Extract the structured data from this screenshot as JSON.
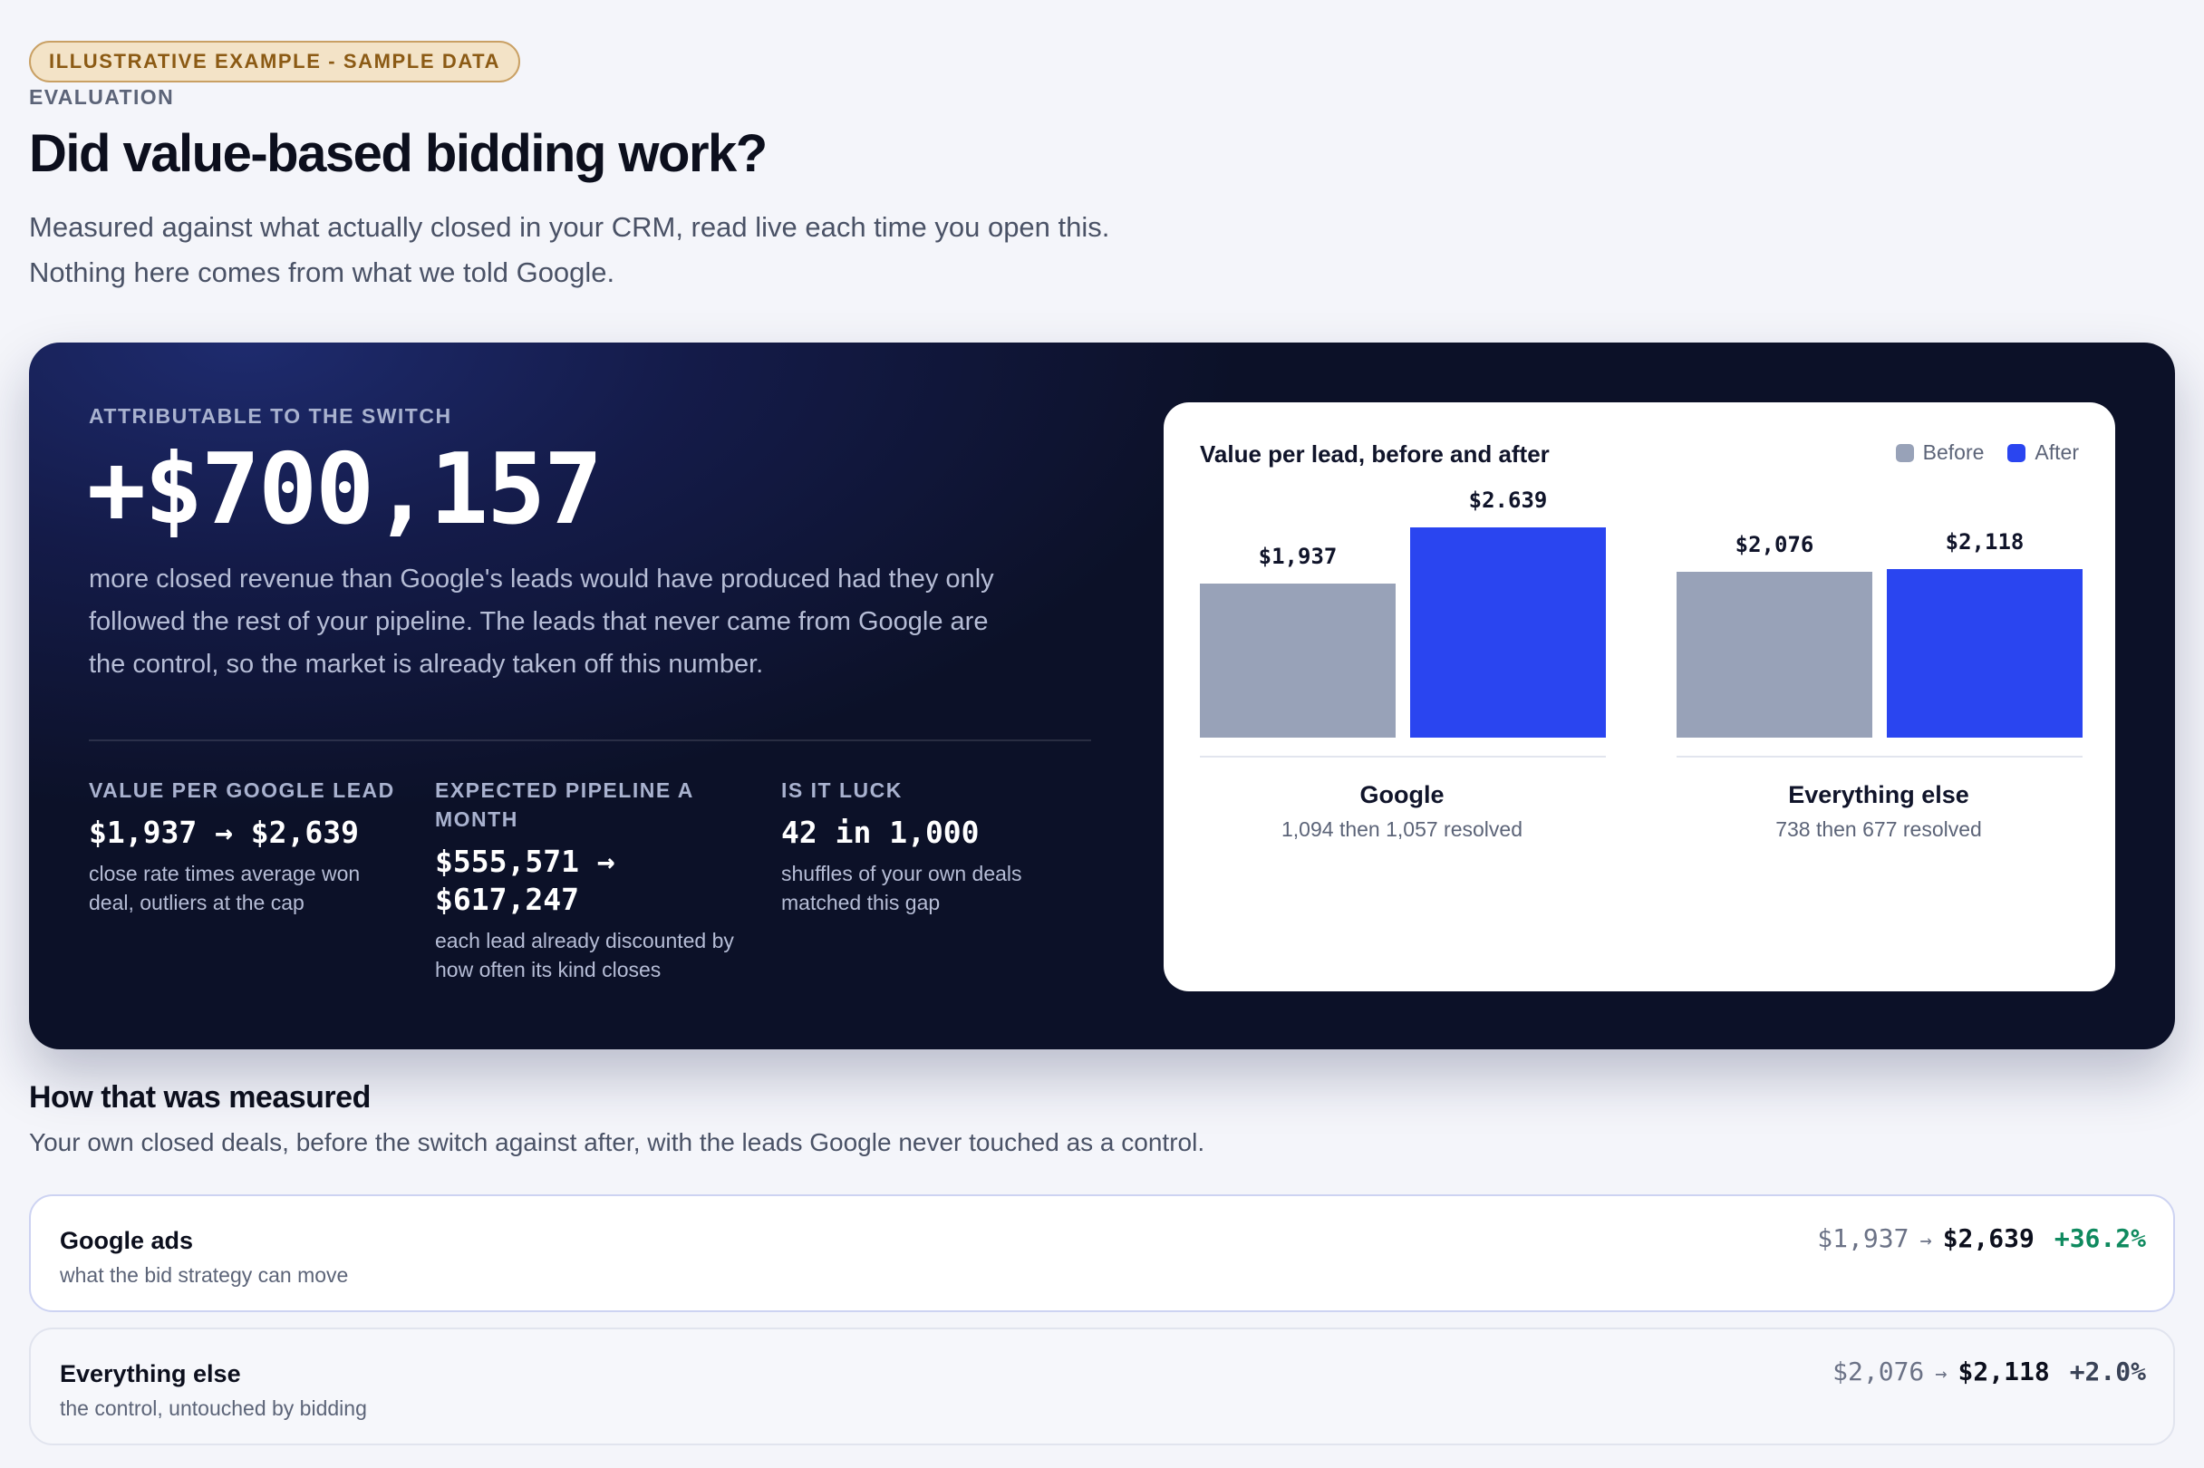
{
  "badge": "ILLUSTRATIVE EXAMPLE - SAMPLE DATA",
  "eyebrow": "EVALUATION",
  "title": "Did value-based bidding work?",
  "subtitle_lines": [
    "Measured against what actually closed in your CRM, read live each time you open this.",
    "Nothing here comes from what we told Google."
  ],
  "hero": {
    "eyebrow": "ATTRIBUTABLE TO THE SWITCH",
    "amount": "+$700,157",
    "description": "more closed revenue than Google's leads would have produced had they only followed the rest of your pipeline. The leads that never came from Google are the control, so the market is already taken off this number.",
    "stats": [
      {
        "label": "VALUE PER GOOGLE LEAD",
        "value": "$1,937 → $2,639",
        "note": "close rate times average won deal, outliers at the cap"
      },
      {
        "label": "EXPECTED PIPELINE A MONTH",
        "value": "$555,571 → $617,247",
        "note": "each lead already discounted by how often its kind closes"
      },
      {
        "label": "IS IT LUCK",
        "value": "42 in 1,000",
        "note": "shuffles of your own deals matched this gap"
      }
    ]
  },
  "chart_data": {
    "type": "bar",
    "title": "Value per lead, before and after",
    "legend_position": "top-right",
    "categories": [
      "Google",
      "Everything else"
    ],
    "category_subtitles": [
      "1,094 then 1,057 resolved",
      "738 then 677 resolved"
    ],
    "series": [
      {
        "name": "Before",
        "color": "#98a2b8",
        "values": [
          1937,
          2076
        ],
        "labels": [
          "$1,937",
          "$2,076"
        ]
      },
      {
        "name": "After",
        "color": "#2a45f0",
        "values": [
          2639,
          2118
        ],
        "labels": [
          "$2.639",
          "$2,118"
        ]
      }
    ],
    "ylim": [
      0,
      2639
    ],
    "grid": false
  },
  "measured": {
    "title": "How that was measured",
    "subtitle": "Your own closed deals, before the switch against after, with the leads Google never touched as a control.",
    "rows": [
      {
        "name": "Google ads",
        "desc": "what the bid strategy can move",
        "before": "$1,937",
        "arrow": "→",
        "after": "$2,639",
        "change": "+36.2%",
        "change_color": "#0f8a5f"
      },
      {
        "name": "Everything else",
        "desc": "the control, untouched by bidding",
        "before": "$2,076",
        "arrow": "→",
        "after": "$2,118",
        "change": "+2.0%",
        "change_color": "#3a4357"
      }
    ]
  }
}
